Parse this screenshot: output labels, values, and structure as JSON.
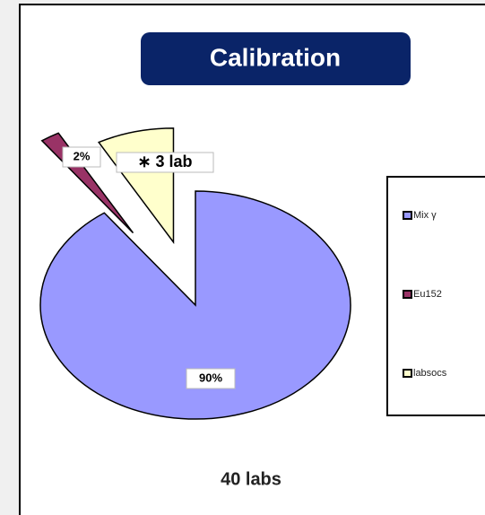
{
  "chart_data": {
    "type": "pie",
    "title": "Calibration",
    "categories": [
      "Mix γ",
      "Eu152",
      "labsocs"
    ],
    "values": [
      90,
      2,
      8
    ],
    "value_labels": [
      "90%",
      "2%",
      null
    ],
    "colors": [
      "#9999ff",
      "#993366",
      "#ffffcc"
    ],
    "annotations": [
      "∗ 3 lab",
      "40 labs"
    ],
    "legend": "right"
  }
}
